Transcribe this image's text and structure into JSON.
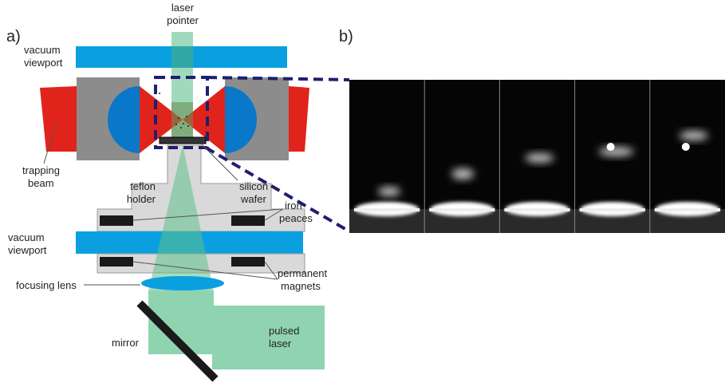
{
  "panels": [
    "a)",
    "b)"
  ],
  "labels": {
    "laser_pointer": [
      "laser",
      "pointer"
    ],
    "top_viewport": [
      "vacuum",
      "viewport"
    ],
    "trapping_beam": [
      "trapping",
      "beam"
    ],
    "teflon_holder": [
      "teflon",
      "holder"
    ],
    "silicon_wafer": [
      "silicon",
      "wafer"
    ],
    "iron_peaces": [
      "iron",
      "peaces"
    ],
    "bottom_viewport": [
      "vacuum",
      "viewport"
    ],
    "focusing_lens": [
      "focusing lens"
    ],
    "permanent_magnets": [
      "permanent",
      "magnets"
    ],
    "mirror": [
      "mirror"
    ],
    "pulsed_laser": [
      "pulsed",
      "laser"
    ]
  }
}
